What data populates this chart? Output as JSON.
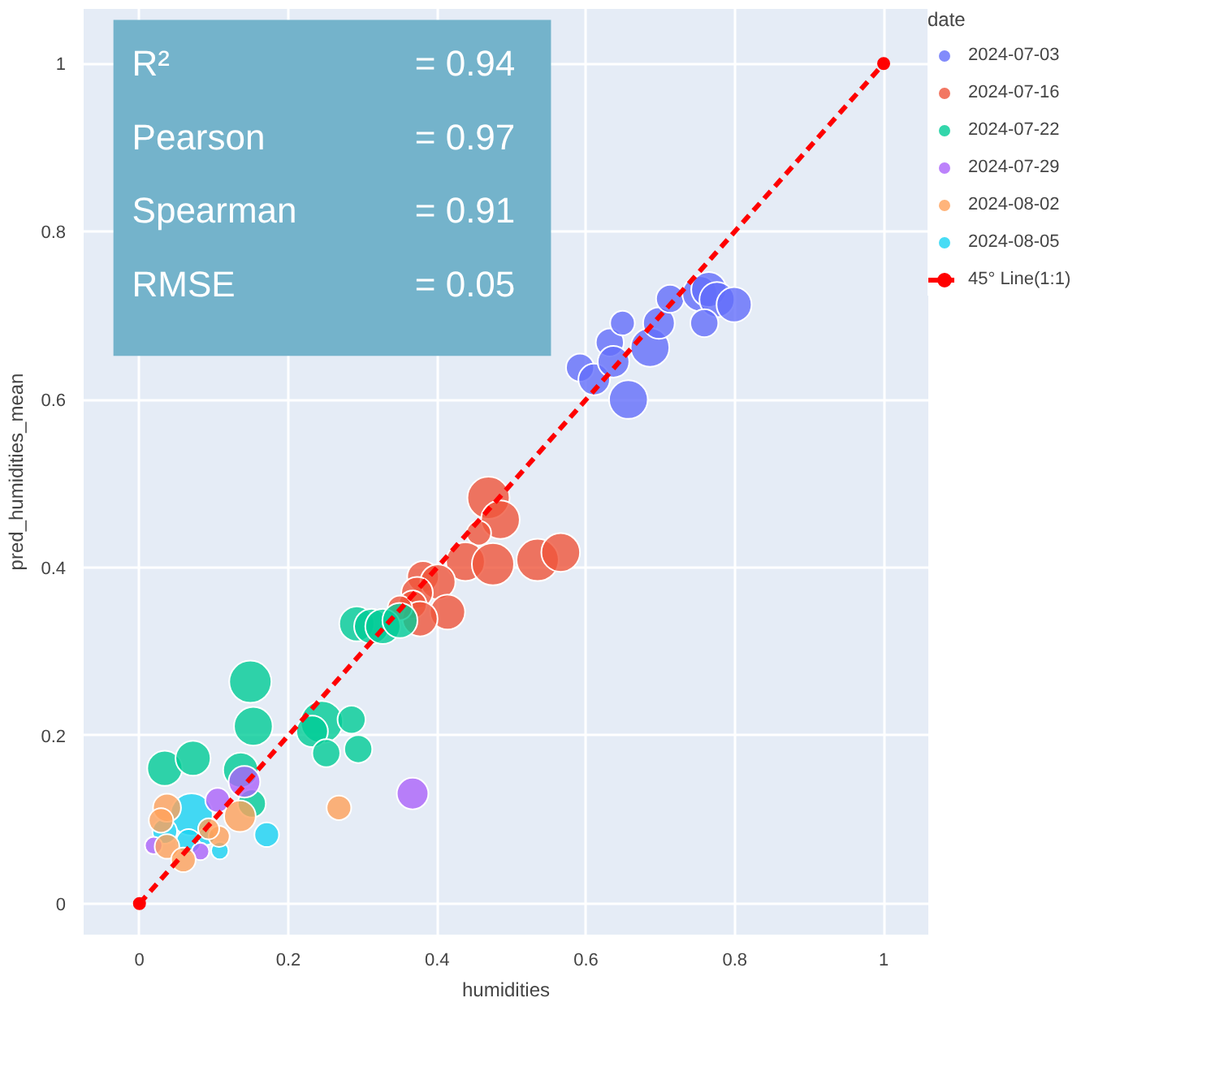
{
  "chart_data": {
    "type": "bubble",
    "xlabel": "humidities",
    "ylabel": "pred_humidities_mean",
    "legend_title": "date",
    "legend": "right",
    "grid": true,
    "xlim": [
      -0.075,
      1.06
    ],
    "ylim": [
      -0.037,
      1.065
    ],
    "xticks": [
      0,
      0.2,
      0.4,
      0.6,
      0.8,
      1
    ],
    "yticks": [
      0,
      0.2,
      0.4,
      0.6,
      0.8,
      1
    ],
    "annotations": [
      "R² = 0.94",
      "Pearson = 0.97",
      "Spearman = 0.91",
      "RMSE = 0.05"
    ],
    "series": [
      {
        "name": "2024-07-03",
        "color": "#636efa",
        "x": [
          0.592,
          0.611,
          0.632,
          0.649,
          0.637,
          0.657,
          0.686,
          0.698,
          0.713,
          0.753,
          0.765,
          0.776,
          0.799,
          0.759
        ],
        "values": [
          0.638,
          0.624,
          0.668,
          0.691,
          0.645,
          0.6,
          0.662,
          0.691,
          0.72,
          0.726,
          0.731,
          0.719,
          0.713,
          0.691
        ],
        "sizes": [
          0.44,
          0.56,
          0.44,
          0.34,
          0.56,
          0.84,
          0.84,
          0.56,
          0.44,
          0.69,
          0.69,
          0.69,
          0.69,
          0.44
        ]
      },
      {
        "name": "2024-07-16",
        "color": "#ef553b",
        "x": [
          0.469,
          0.485,
          0.456,
          0.438,
          0.475,
          0.535,
          0.566,
          0.381,
          0.401,
          0.373,
          0.367,
          0.414,
          0.377,
          0.35
        ],
        "values": [
          0.483,
          0.457,
          0.441,
          0.407,
          0.404,
          0.409,
          0.418,
          0.389,
          0.383,
          0.37,
          0.356,
          0.347,
          0.339,
          0.352
        ],
        "sizes": [
          1,
          0.84,
          0.34,
          0.84,
          1,
          1,
          0.84,
          0.56,
          0.69,
          0.56,
          0.44,
          0.69,
          0.69,
          0.34
        ]
      },
      {
        "name": "2024-07-22",
        "color": "#00cc96",
        "x": [
          0.292,
          0.312,
          0.327,
          0.35,
          0.149,
          0.153,
          0.034,
          0.072,
          0.136,
          0.151,
          0.245,
          0.232,
          0.285,
          0.251,
          0.294
        ],
        "values": [
          0.333,
          0.33,
          0.33,
          0.337,
          0.264,
          0.211,
          0.161,
          0.173,
          0.159,
          0.119,
          0.216,
          0.205,
          0.219,
          0.179,
          0.184
        ],
        "sizes": [
          0.69,
          0.69,
          0.69,
          0.69,
          1,
          0.84,
          0.69,
          0.69,
          0.69,
          0.44,
          1,
          0.56,
          0.44,
          0.44,
          0.44
        ]
      },
      {
        "name": "2024-07-29",
        "color": "#ab63fa",
        "x": [
          0.367,
          0.141,
          0.105,
          0.019,
          0.082
        ],
        "values": [
          0.131,
          0.145,
          0.123,
          0.069,
          0.062
        ],
        "sizes": [
          0.56,
          0.56,
          0.34,
          0.17,
          0.17
        ]
      },
      {
        "name": "2024-08-02",
        "color": "#ffa15a",
        "x": [
          0.268,
          0.135,
          0.037,
          0.029,
          0.037,
          0.059,
          0.107,
          0.093
        ],
        "values": [
          0.114,
          0.104,
          0.114,
          0.099,
          0.068,
          0.052,
          0.08,
          0.089
        ],
        "sizes": [
          0.34,
          0.56,
          0.44,
          0.34,
          0.34,
          0.34,
          0.25,
          0.25
        ]
      },
      {
        "name": "2024-08-05",
        "color": "#19d3f3",
        "x": [
          0.07,
          0.034,
          0.066,
          0.108,
          0.171,
          0.09
        ],
        "values": [
          0.106,
          0.086,
          0.074,
          0.063,
          0.082,
          0.08
        ],
        "sizes": [
          1,
          0.34,
          0.34,
          0.17,
          0.34,
          0.17
        ]
      },
      {
        "name": "45° Line(1:1)",
        "type": "line",
        "color": "#ff0000",
        "x": [
          0,
          1
        ],
        "values": [
          0,
          1
        ],
        "marker": "circle",
        "line_style": "dashed"
      }
    ]
  }
}
